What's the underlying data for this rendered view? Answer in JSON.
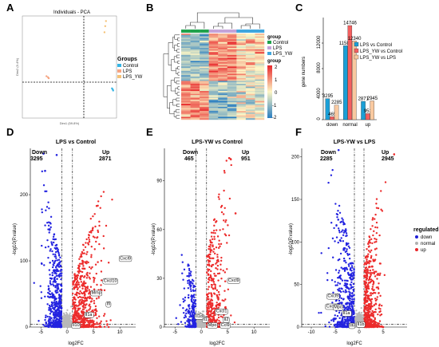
{
  "panels": {
    "A": {
      "label": "A",
      "title": "Individuals - PCA",
      "xlabel": "Dim1 (59.8%)",
      "ylabel": "Dim2 (9.4%)",
      "legend_title": "Groups",
      "groups": [
        {
          "name": "Control",
          "color": "#35b5e5"
        },
        {
          "name": "LPS",
          "color": "#f6a582"
        },
        {
          "name": "LPS_YW",
          "color": "#f5c277"
        }
      ]
    },
    "B": {
      "label": "B",
      "legend_group_title": "group",
      "legend_groups": [
        {
          "name": "Control",
          "color": "#20a24c"
        },
        {
          "name": "LPS",
          "color": "#c4a3d8"
        },
        {
          "name": "LPS_YW",
          "color": "#3fa6dd"
        }
      ],
      "legend_scale_title": "group",
      "scale_ticks": [
        "2",
        "1",
        "0",
        "-1",
        "-2"
      ]
    },
    "C": {
      "label": "C",
      "ylabel": "gene numbers"
    },
    "D": {
      "label": "D",
      "title": "LPS vs Control",
      "xlabel": "log2FC",
      "ylabel": "-log10(P.value)",
      "down_label": "Down",
      "down_count": "3295",
      "up_label": "Up",
      "up_count": "2871",
      "genes": [
        "Cxcl9",
        "Cxcl10",
        "Mmp",
        "Ifi",
        "Il1a",
        "Il10"
      ]
    },
    "E": {
      "label": "E",
      "title": "LPS-YW vs Control",
      "xlabel": "log2FC",
      "ylabel": "-log10(P.value)",
      "down_label": "Down",
      "down_count": "465",
      "up_label": "Up",
      "up_count": "951",
      "genes": [
        "Cxcl9",
        "Mpo",
        "Il1",
        "Il1d",
        "Cxcl1",
        "Il2",
        "Ccl9"
      ]
    },
    "F": {
      "label": "F",
      "title": "LPS-YW vs LPS",
      "xlabel": "log2FC",
      "ylabel": "-log10(P.value)",
      "down_label": "Down",
      "down_count": "2285",
      "up_label": "Up",
      "up_count": "2945",
      "genes": [
        "Cxcl9",
        "Cxcl10",
        "Mpo",
        "Il1a",
        "Il6",
        "Il1b"
      ]
    },
    "legend": {
      "title": "regulated",
      "items": [
        {
          "name": "down",
          "color": "#1f1fd6"
        },
        {
          "name": "normal",
          "color": "#b0b0b0"
        },
        {
          "name": "up",
          "color": "#e8262a"
        }
      ]
    }
  },
  "chart_data": [
    {
      "type": "scatter",
      "panel": "A",
      "title": "Individuals - PCA",
      "xlabel": "Dim1 (59.8%)",
      "ylabel": "Dim2 (9.4%)",
      "xlim": [
        -150,
        100
      ],
      "ylim": [
        -100,
        100
      ],
      "series": [
        {
          "name": "Control",
          "points": [
            [
              88,
              -42
            ],
            [
              90,
              -44
            ],
            [
              91,
              -46
            ]
          ],
          "color": "#35b5e5"
        },
        {
          "name": "LPS",
          "points": [
            [
              -82,
              -20
            ],
            [
              -86,
              -18
            ],
            [
              -80,
              -22
            ]
          ],
          "color": "#f6a582"
        },
        {
          "name": "LPS_YW",
          "points": [
            [
              72,
              90
            ],
            [
              70,
              80
            ],
            [
              68,
              68
            ]
          ],
          "color": "#f5c277"
        }
      ]
    },
    {
      "type": "bar",
      "panel": "C",
      "ylabel": "gene numbers",
      "categories": [
        "down",
        "normal",
        "up"
      ],
      "ylim": [
        0,
        16000
      ],
      "series": [
        {
          "name": "LPS vs Control",
          "values": [
            3295,
            11580,
            2871
          ],
          "color": "#1b9fd6"
        },
        {
          "name": "LPS_YW vs Control",
          "values": [
            465,
            14746,
            951
          ],
          "color": "#f45f5f"
        },
        {
          "name": "LPS_YW vs LPS",
          "values": [
            2285,
            12340,
            2945
          ],
          "color": "#f9c9a0"
        }
      ]
    },
    {
      "type": "scatter",
      "panel": "D",
      "title": "LPS vs Control",
      "xlabel": "log2FC",
      "ylabel": "-log10(P.value)",
      "xlim": [
        -7,
        13
      ],
      "ylim": [
        0,
        270
      ],
      "down": 3295,
      "up": 2871
    },
    {
      "type": "scatter",
      "panel": "E",
      "title": "LPS-YW vs Control",
      "xlabel": "log2FC",
      "ylabel": "-log10(P.value)",
      "xlim": [
        -7,
        13
      ],
      "ylim": [
        0,
        110
      ],
      "down": 465,
      "up": 951
    },
    {
      "type": "scatter",
      "panel": "F",
      "title": "LPS-YW vs LPS",
      "xlabel": "log2FC",
      "ylabel": "-log10(P.value)",
      "xlim": [
        -12,
        10
      ],
      "ylim": [
        0,
        210
      ],
      "down": 2285,
      "up": 2945
    }
  ]
}
